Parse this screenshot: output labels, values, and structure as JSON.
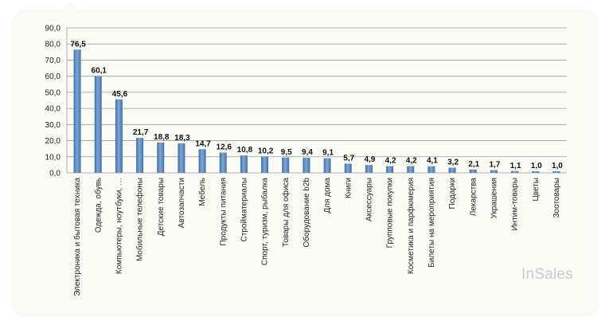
{
  "brand": {
    "logo_text": "InSales"
  },
  "chart_data": {
    "type": "bar",
    "categories": [
      "Электроника и бытовая техника",
      "Одежда, обувь",
      "Компьютеры, ноутбуки, …",
      "Мобильные телефоны",
      "Детские товары",
      "Автозапчасти",
      "Мебель",
      "Продукты питания",
      "Стройматериалы",
      "Спорт, туризм, рыбалка",
      "Товары для офиса",
      "Оборудование b2b",
      "Для дома",
      "Книги",
      "Аксессуары",
      "Групповые покупки",
      "Косметика и парфюмерия",
      "Билеты на мероприятия",
      "Подарки",
      "Лекарства",
      "Украшения",
      "Интим-товары",
      "Цветы",
      "Зоотовары"
    ],
    "values": [
      76.5,
      60.1,
      45.6,
      21.7,
      18.8,
      18.3,
      14.7,
      12.6,
      10.8,
      10.2,
      9.5,
      9.4,
      9.1,
      5.7,
      4.9,
      4.2,
      4.2,
      4.1,
      3.2,
      2.1,
      1.7,
      1.1,
      1.0,
      1.0
    ],
    "value_labels": [
      "76,5",
      "60,1",
      "45,6",
      "21,7",
      "18,8",
      "18,3",
      "14,7",
      "12,6",
      "10,8",
      "10,2",
      "9,5",
      "9,4",
      "9,1",
      "5,7",
      "4,9",
      "4,2",
      "4,2",
      "4,1",
      "3,2",
      "2,1",
      "1,7",
      "1,1",
      "1,0",
      "1,0"
    ],
    "yticks": [
      "0,0",
      "10,0",
      "20,0",
      "30,0",
      "40,0",
      "50,0",
      "60,0",
      "70,0",
      "80,0",
      "90,0"
    ],
    "ylim": [
      0,
      90
    ],
    "grid": true,
    "colors": {
      "bar": "#4f81bd",
      "bar_light": "#9dbde3",
      "grid": "#9a9a9a"
    }
  }
}
